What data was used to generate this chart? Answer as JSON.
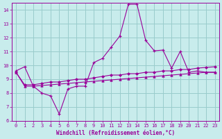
{
  "xlabel": "Windchill (Refroidissement éolien,°C)",
  "bg_color": "#c8ecec",
  "line_color": "#990099",
  "grid_color": "#99cccc",
  "text_color": "#990099",
  "xlim": [
    -0.5,
    23.5
  ],
  "ylim": [
    6,
    14.5
  ],
  "yticks": [
    6,
    7,
    8,
    9,
    10,
    11,
    12,
    13,
    14
  ],
  "xticks": [
    0,
    1,
    2,
    3,
    4,
    5,
    6,
    7,
    8,
    9,
    10,
    11,
    12,
    13,
    14,
    15,
    16,
    17,
    18,
    19,
    20,
    21,
    22,
    23
  ],
  "series1_x": [
    0,
    1,
    2,
    3,
    4,
    5,
    6,
    7,
    8,
    9,
    10,
    11,
    12,
    13,
    14,
    15,
    16,
    17,
    18,
    19,
    20,
    21,
    22,
    23
  ],
  "series1_y": [
    9.6,
    9.9,
    8.5,
    8.0,
    7.8,
    6.5,
    8.3,
    8.5,
    8.5,
    10.2,
    10.5,
    11.3,
    12.1,
    14.4,
    14.4,
    11.8,
    11.05,
    11.1,
    9.8,
    11.0,
    9.5,
    9.6,
    9.5,
    9.5
  ],
  "series2_x": [
    0,
    1,
    2,
    3,
    4,
    5,
    6,
    7,
    8,
    9,
    10,
    11,
    12,
    13,
    14,
    15,
    16,
    17,
    18,
    19,
    20,
    21,
    22,
    23
  ],
  "series2_y": [
    9.5,
    8.6,
    8.6,
    8.7,
    8.8,
    8.8,
    8.9,
    9.0,
    9.0,
    9.1,
    9.2,
    9.3,
    9.3,
    9.4,
    9.4,
    9.5,
    9.5,
    9.6,
    9.6,
    9.7,
    9.7,
    9.8,
    9.85,
    9.9
  ],
  "series3_x": [
    0,
    1,
    2,
    3,
    4,
    5,
    6,
    7,
    8,
    9,
    10,
    11,
    12,
    13,
    14,
    15,
    16,
    17,
    18,
    19,
    20,
    21,
    22,
    23
  ],
  "series3_y": [
    9.5,
    8.5,
    8.5,
    8.55,
    8.6,
    8.65,
    8.7,
    8.75,
    8.8,
    8.85,
    8.9,
    8.95,
    9.0,
    9.05,
    9.1,
    9.15,
    9.2,
    9.25,
    9.3,
    9.35,
    9.4,
    9.45,
    9.5,
    9.5
  ]
}
